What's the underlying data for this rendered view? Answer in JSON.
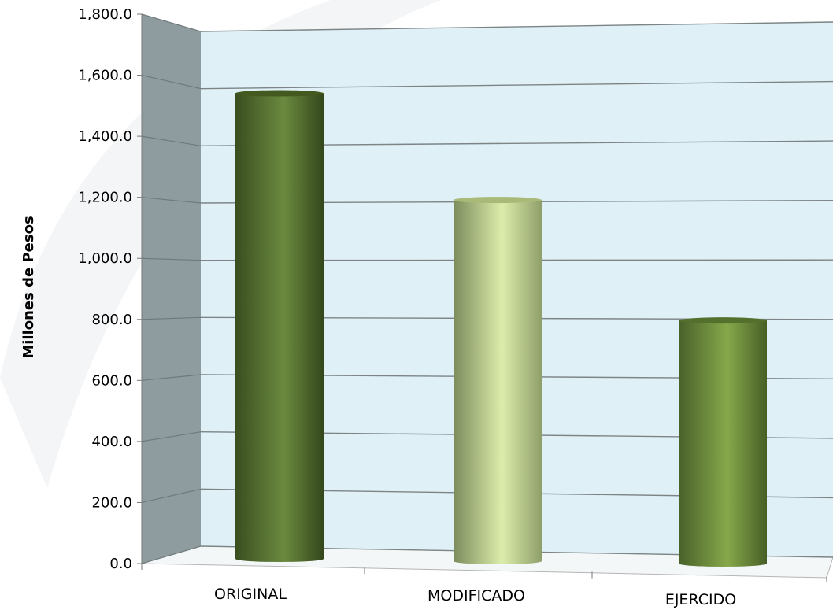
{
  "chart_data": {
    "type": "bar",
    "style": "3d-cylinder",
    "categories": [
      "ORIGINAL",
      "MODIFICADO",
      "EJERCIDO"
    ],
    "values": [
      1628.0,
      1263.0,
      850.0
    ],
    "ylabel": "Millones de Pesos",
    "ylim": [
      0,
      1800
    ],
    "yticks": [
      "0.0",
      "200.0",
      "400.0",
      "600.0",
      "800.0",
      "1,000.0",
      "1,200.0",
      "1,400.0",
      "1,600.0",
      "1,800.0"
    ],
    "grid": true,
    "colors": {
      "back_wall": "#dff1f7",
      "side_wall": "#8f9c9f",
      "bar_original": "#5c7a35",
      "bar_modificado": "#d2e3a0",
      "bar_ejercido": "#7a9a40"
    }
  }
}
